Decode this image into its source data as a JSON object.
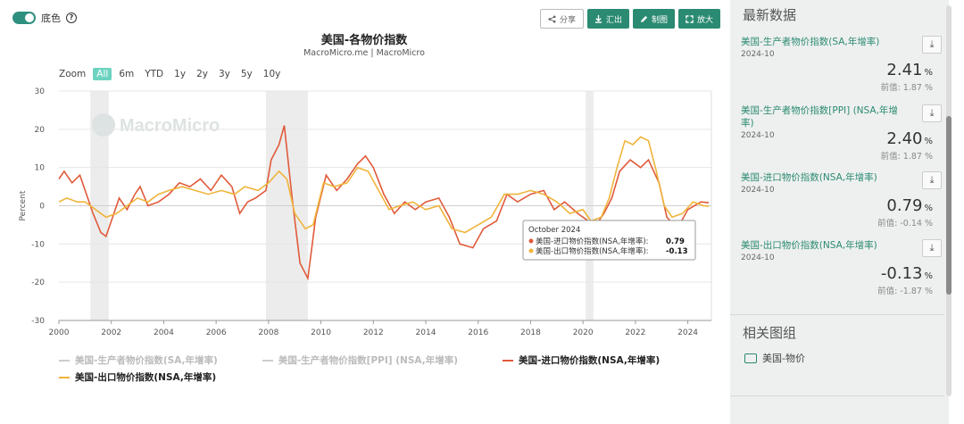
{
  "toggle": {
    "label": "底色",
    "help": "?"
  },
  "toolbar": {
    "share": "分享",
    "export": "汇出",
    "draw": "制图",
    "expand": "放大"
  },
  "title": "美国-各物价指数",
  "subtitle": "MacroMicro.me | MacroMicro",
  "zoom": {
    "label": "Zoom",
    "options": [
      "All",
      "6m",
      "YTD",
      "1y",
      "2y",
      "3y",
      "5y",
      "10y"
    ],
    "selected": "All"
  },
  "watermark": "MacroMicro",
  "chart_data": {
    "type": "line",
    "ylabel": "Percent",
    "ylim": [
      -30,
      30
    ],
    "yticks": [
      "30",
      "20",
      "10",
      "0",
      "-10",
      "-20",
      "-30"
    ],
    "xlim": [
      2000,
      2024.9
    ],
    "xticks": [
      "2000",
      "2002",
      "2004",
      "2006",
      "2008",
      "2010",
      "2012",
      "2014",
      "2016",
      "2018",
      "2020",
      "2022",
      "2024"
    ],
    "recessions": [
      [
        2001.2,
        2001.9
      ],
      [
        2007.9,
        2009.5
      ],
      [
        2020.1,
        2020.4
      ]
    ],
    "series": [
      {
        "name": "美国-生产者物价指数(SA,年增率)",
        "color": "#cccccc",
        "visible": false,
        "x": [],
        "values": []
      },
      {
        "name": "美国-生产者物价指数[PPI] (NSA,年增率)",
        "color": "#cccccc",
        "visible": false,
        "x": [],
        "values": []
      },
      {
        "name": "美国-进口物价指数(NSA,年增率)",
        "color": "#e05a3a",
        "visible": true,
        "x": [
          2000.0,
          2000.2,
          2000.5,
          2000.8,
          2001.0,
          2001.3,
          2001.6,
          2001.8,
          2002.0,
          2002.3,
          2002.6,
          2002.9,
          2003.1,
          2003.4,
          2003.8,
          2004.2,
          2004.6,
          2005.0,
          2005.4,
          2005.8,
          2006.2,
          2006.6,
          2006.9,
          2007.2,
          2007.5,
          2007.9,
          2008.1,
          2008.4,
          2008.6,
          2008.9,
          2009.2,
          2009.5,
          2009.8,
          2010.2,
          2010.6,
          2011.0,
          2011.4,
          2011.7,
          2012.0,
          2012.4,
          2012.8,
          2013.2,
          2013.6,
          2014.0,
          2014.5,
          2014.9,
          2015.3,
          2015.8,
          2016.2,
          2016.7,
          2017.1,
          2017.5,
          2018.0,
          2018.5,
          2018.9,
          2019.3,
          2019.8,
          2020.2,
          2020.4,
          2020.8,
          2021.1,
          2021.4,
          2021.8,
          2022.2,
          2022.5,
          2022.9,
          2023.2,
          2023.6,
          2024.0,
          2024.5,
          2024.8
        ],
        "values": [
          7,
          9,
          6,
          8,
          4,
          -2,
          -7,
          -8,
          -4,
          2,
          -1,
          3,
          5,
          0,
          1,
          3,
          6,
          5,
          7,
          4,
          8,
          5,
          -2,
          1,
          2,
          4,
          12,
          16,
          21,
          2,
          -15,
          -19,
          -3,
          8,
          4,
          7,
          11,
          13,
          10,
          3,
          -2,
          1,
          -1,
          1,
          2,
          -3,
          -10,
          -11,
          -6,
          -4,
          3,
          1,
          3,
          4,
          -1,
          1,
          -2,
          -4,
          -6,
          -2,
          2,
          9,
          12,
          10,
          12,
          6,
          -3,
          -6,
          -1,
          1,
          0.79
        ]
      },
      {
        "name": "美国-出口物价指数(NSA,年增率)",
        "color": "#f0b43a",
        "visible": true,
        "x": [
          2000.0,
          2000.3,
          2000.7,
          2001.0,
          2001.4,
          2001.8,
          2002.2,
          2002.6,
          2003.0,
          2003.4,
          2003.8,
          2004.2,
          2004.7,
          2005.2,
          2005.7,
          2006.2,
          2006.7,
          2007.1,
          2007.6,
          2008.0,
          2008.4,
          2008.7,
          2009.0,
          2009.4,
          2009.7,
          2010.1,
          2010.5,
          2011.0,
          2011.4,
          2011.8,
          2012.2,
          2012.6,
          2013.0,
          2013.5,
          2014.0,
          2014.5,
          2015.0,
          2015.5,
          2016.0,
          2016.5,
          2017.0,
          2017.5,
          2018.0,
          2018.5,
          2019.0,
          2019.5,
          2020.0,
          2020.3,
          2020.7,
          2021.0,
          2021.3,
          2021.6,
          2021.9,
          2022.2,
          2022.5,
          2022.8,
          2023.1,
          2023.4,
          2023.8,
          2024.2,
          2024.6,
          2024.8
        ],
        "values": [
          1,
          2,
          1,
          1,
          -1,
          -3,
          -2,
          0,
          2,
          1,
          3,
          4,
          5,
          4,
          3,
          4,
          3,
          5,
          4,
          6,
          9,
          7,
          -2,
          -6,
          -5,
          6,
          5,
          6,
          10,
          9,
          4,
          -1,
          0,
          1,
          -1,
          0,
          -6,
          -7,
          -5,
          -3,
          3,
          3,
          4,
          3,
          1,
          -2,
          -1,
          -4,
          -3,
          2,
          10,
          17,
          16,
          18,
          17,
          9,
          0,
          -3,
          -2,
          1,
          0,
          -0.13
        ]
      }
    ]
  },
  "tooltip": {
    "date": "October 2024",
    "rows": [
      {
        "label": "美国-进口物价指数(NSA,年增率):",
        "value": "0.79",
        "color": "#e05a3a"
      },
      {
        "label": "美国-出口物价指数(NSA,年增率):",
        "value": "-0.13",
        "color": "#f0b43a"
      }
    ]
  },
  "legend": [
    {
      "label": "美国-生产者物价指数(SA,年增率)",
      "color": "#cccccc",
      "active": false
    },
    {
      "label": "美国-生产者物价指数[PPI] (NSA,年增率)",
      "color": "#cccccc",
      "active": false
    },
    {
      "label": "美国-进口物价指数(NSA,年增率)",
      "color": "#e05a3a",
      "active": true
    },
    {
      "label": "美国-出口物价指数(NSA,年增率)",
      "color": "#f0b43a",
      "active": true
    }
  ],
  "panel": {
    "heading": "最新数据",
    "cards": [
      {
        "name": "美国-生产者物价指数(SA,年增率)",
        "date": "2024-10",
        "value": "2.41",
        "unit": "%",
        "prev": "前值: 1.87 %"
      },
      {
        "name": "美国-生产者物价指数[PPI] (NSA,年增率)",
        "date": "2024-10",
        "value": "2.40",
        "unit": "%",
        "prev": "前值: 1.87 %"
      },
      {
        "name": "美国-进口物价指数(NSA,年增率)",
        "date": "2024-10",
        "value": "0.79",
        "unit": "%",
        "prev": "前值: -0.14 %"
      },
      {
        "name": "美国-出口物价指数(NSA,年增率)",
        "date": "2024-10",
        "value": "-0.13",
        "unit": "%",
        "prev": "前值: -1.87 %"
      }
    ],
    "group_heading": "相关图组",
    "group_item": "美国-物价"
  }
}
